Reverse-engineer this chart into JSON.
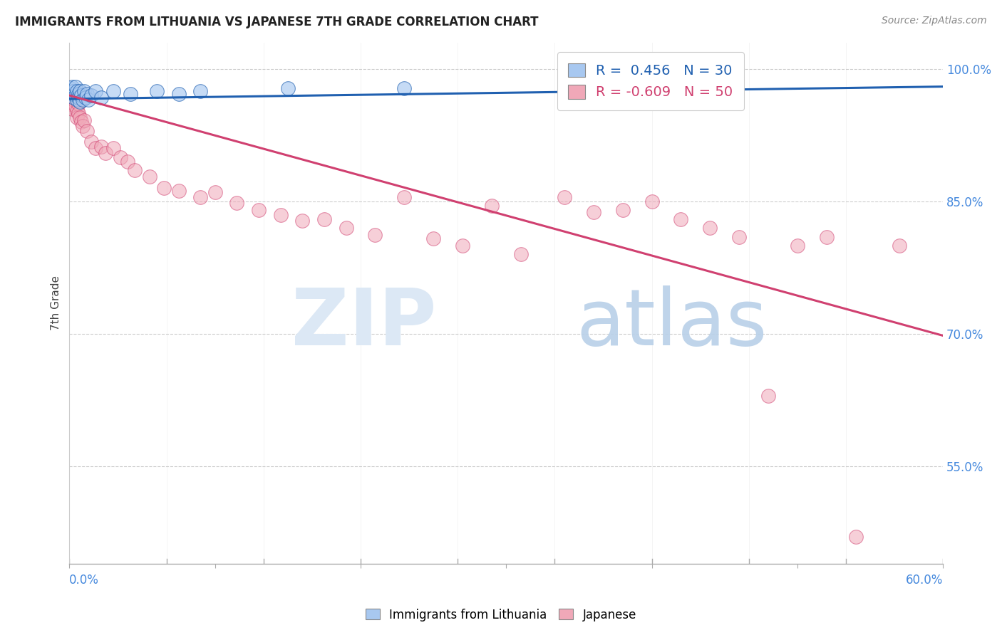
{
  "title": "IMMIGRANTS FROM LITHUANIA VS JAPANESE 7TH GRADE CORRELATION CHART",
  "source": "Source: ZipAtlas.com",
  "ylabel": "7th Grade",
  "blue_r": 0.456,
  "blue_n": 30,
  "pink_r": -0.609,
  "pink_n": 50,
  "blue_color": "#a8c8f0",
  "pink_color": "#f0a8b8",
  "blue_line_color": "#2060b0",
  "pink_line_color": "#d04070",
  "title_color": "#222222",
  "source_color": "#888888",
  "axis_label_color": "#444444",
  "tick_label_color": "#4488dd",
  "grid_color": "#cccccc",
  "xlim": [
    0.0,
    0.6
  ],
  "ylim": [
    0.44,
    1.03
  ],
  "ytick_values": [
    1.0,
    0.85,
    0.7,
    0.55
  ],
  "ytick_labels": [
    "100.0%",
    "85.0%",
    "70.0%",
    "55.0%"
  ],
  "blue_scatter_x": [
    0.001,
    0.002,
    0.002,
    0.003,
    0.003,
    0.004,
    0.004,
    0.005,
    0.005,
    0.006,
    0.006,
    0.007,
    0.007,
    0.008,
    0.009,
    0.01,
    0.011,
    0.012,
    0.013,
    0.015,
    0.018,
    0.022,
    0.03,
    0.042,
    0.06,
    0.075,
    0.09,
    0.15,
    0.23,
    0.34
  ],
  "blue_scatter_y": [
    0.978,
    0.98,
    0.972,
    0.968,
    0.975,
    0.97,
    0.98,
    0.975,
    0.965,
    0.972,
    0.968,
    0.975,
    0.963,
    0.97,
    0.965,
    0.975,
    0.968,
    0.972,
    0.965,
    0.97,
    0.975,
    0.968,
    0.975,
    0.972,
    0.975,
    0.972,
    0.975,
    0.978,
    0.978,
    0.98
  ],
  "pink_scatter_x": [
    0.001,
    0.002,
    0.003,
    0.004,
    0.005,
    0.005,
    0.006,
    0.006,
    0.007,
    0.008,
    0.009,
    0.01,
    0.012,
    0.015,
    0.018,
    0.022,
    0.025,
    0.03,
    0.035,
    0.04,
    0.045,
    0.055,
    0.065,
    0.075,
    0.09,
    0.1,
    0.115,
    0.13,
    0.145,
    0.16,
    0.175,
    0.19,
    0.21,
    0.23,
    0.25,
    0.27,
    0.29,
    0.31,
    0.34,
    0.36,
    0.38,
    0.4,
    0.42,
    0.44,
    0.46,
    0.48,
    0.5,
    0.52,
    0.54,
    0.57
  ],
  "pink_scatter_y": [
    0.96,
    0.955,
    0.965,
    0.958,
    0.952,
    0.945,
    0.96,
    0.95,
    0.945,
    0.94,
    0.935,
    0.942,
    0.93,
    0.918,
    0.91,
    0.912,
    0.905,
    0.91,
    0.9,
    0.895,
    0.885,
    0.878,
    0.865,
    0.862,
    0.855,
    0.86,
    0.848,
    0.84,
    0.835,
    0.828,
    0.83,
    0.82,
    0.812,
    0.855,
    0.808,
    0.8,
    0.845,
    0.79,
    0.855,
    0.838,
    0.84,
    0.85,
    0.83,
    0.82,
    0.81,
    0.63,
    0.8,
    0.81,
    0.47,
    0.8
  ],
  "blue_line_x": [
    0.0,
    0.6
  ],
  "blue_line_y": [
    0.966,
    0.98
  ],
  "pink_line_x": [
    0.0,
    0.6
  ],
  "pink_line_y": [
    0.97,
    0.698
  ]
}
